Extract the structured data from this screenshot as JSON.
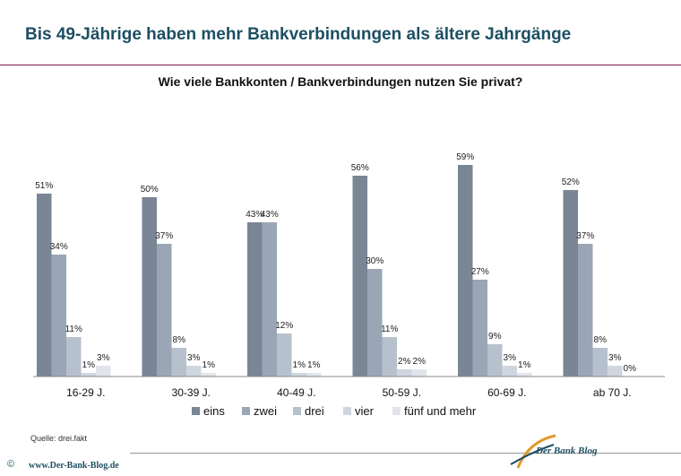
{
  "header": {
    "title": "Bis 49-Jährige haben mehr Bankverbindungen als ältere Jahrgänge"
  },
  "chart_data": {
    "type": "bar",
    "title": "Wie viele Bankkonten / Bankverbindungen nutzen Sie privat?",
    "categories": [
      "16-29 J.",
      "30-39 J.",
      "40-49 J.",
      "50-59 J.",
      "60-69 J.",
      "ab 70 J."
    ],
    "series": [
      {
        "name": "eins",
        "values": [
          51,
          50,
          43,
          56,
          59,
          52
        ],
        "color": "#7a8595"
      },
      {
        "name": "zwei",
        "values": [
          34,
          37,
          43,
          30,
          27,
          37
        ],
        "color": "#9aa6b6"
      },
      {
        "name": "drei",
        "values": [
          11,
          8,
          12,
          11,
          9,
          8
        ],
        "color": "#b7c1ce"
      },
      {
        "name": "vier",
        "values": [
          1,
          3,
          1,
          2,
          3,
          3
        ],
        "color": "#cfd6df"
      },
      {
        "name": "fünf und mehr",
        "values": [
          3,
          1,
          1,
          2,
          1,
          0
        ],
        "color": "#e1e5eb"
      }
    ],
    "value_suffix": "%",
    "ylim": [
      0,
      65
    ],
    "grid": false,
    "legend_position": "bottom"
  },
  "footer": {
    "source": "Quelle: drei.fakt",
    "copyright": "©",
    "url": "www.Der-Bank-Blog.de",
    "logo_text": "Der Bank Blog"
  }
}
